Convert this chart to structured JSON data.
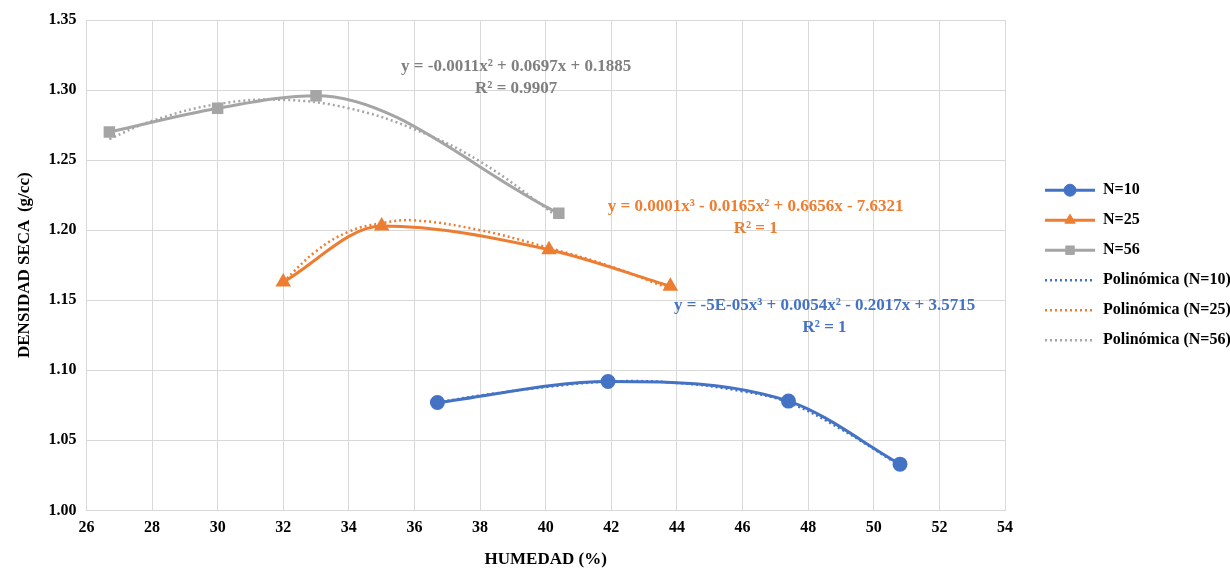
{
  "chart_data": {
    "type": "line",
    "xlabel": "HUMEDAD (%)",
    "ylabel": "DENSIDAD SECA  (g/cc)",
    "xlim": [
      26,
      54
    ],
    "xticks": [
      26,
      28,
      30,
      32,
      34,
      36,
      38,
      40,
      42,
      44,
      46,
      48,
      50,
      52,
      54
    ],
    "ylim": [
      1.0,
      1.35
    ],
    "yticks": [
      {
        "value": 1.0,
        "label": "1.00"
      },
      {
        "value": 1.05,
        "label": "1.05"
      },
      {
        "value": 1.1,
        "label": "1.10"
      },
      {
        "value": 1.15,
        "label": "1.15"
      },
      {
        "value": 1.2,
        "label": "1.20"
      },
      {
        "value": 1.25,
        "label": "1.25"
      },
      {
        "value": 1.3,
        "label": "1.30"
      },
      {
        "value": 1.35,
        "label": "1.35"
      }
    ],
    "grid": true,
    "legend": "right",
    "series": [
      {
        "name": "N=10",
        "color": "#4472c4",
        "marker": "circle",
        "line_style": "solid",
        "x": [
          36.7,
          41.9,
          47.4,
          50.8
        ],
        "values": [
          1.077,
          1.092,
          1.078,
          1.033
        ]
      },
      {
        "name": "N=25",
        "color": "#ed7d31",
        "marker": "triangle",
        "line_style": "solid",
        "x": [
          32.0,
          35.0,
          40.1,
          43.8
        ],
        "values": [
          1.163,
          1.203,
          1.186,
          1.16
        ]
      },
      {
        "name": "N=56",
        "color": "#a5a5a5",
        "marker": "square",
        "line_style": "solid",
        "x": [
          26.7,
          30.0,
          33.0,
          40.4
        ],
        "values": [
          1.27,
          1.287,
          1.296,
          1.212
        ]
      },
      {
        "name": "Polinómica (N=10)",
        "color": "#4472c4",
        "marker": "none",
        "line_style": "dotted",
        "x": [
          36.7,
          38,
          40,
          42,
          44,
          46,
          47.4,
          49,
          50.8
        ],
        "values": [
          1.077,
          1.082,
          1.088,
          1.092,
          1.091,
          1.085,
          1.077,
          1.058,
          1.032
        ]
      },
      {
        "name": "Polinómica (N=25)",
        "color": "#ed7d31",
        "marker": "none",
        "line_style": "dotted",
        "x": [
          32,
          33,
          34,
          35,
          36,
          38,
          40,
          42,
          43.8
        ],
        "values": [
          1.163,
          1.185,
          1.199,
          1.205,
          1.207,
          1.2,
          1.188,
          1.174,
          1.158
        ]
      },
      {
        "name": "Polinómica (N=56)",
        "color": "#a5a5a5",
        "marker": "none",
        "line_style": "dotted",
        "x": [
          26.7,
          28,
          30,
          32,
          34,
          36,
          38,
          40.4
        ],
        "values": [
          1.265,
          1.278,
          1.29,
          1.293,
          1.287,
          1.272,
          1.249,
          1.209
        ]
      }
    ],
    "annotations": [
      "y = -5E-05x³ + 0.0054x² - 0.2017x + 3.5715\nR² = 1",
      "y = 0.0001x³ - 0.0165x² + 0.6656x - 7.6321\nR² = 1",
      "y = -0.0011x² + 0.0697x + 0.1885\nR² = 0.9907"
    ]
  }
}
